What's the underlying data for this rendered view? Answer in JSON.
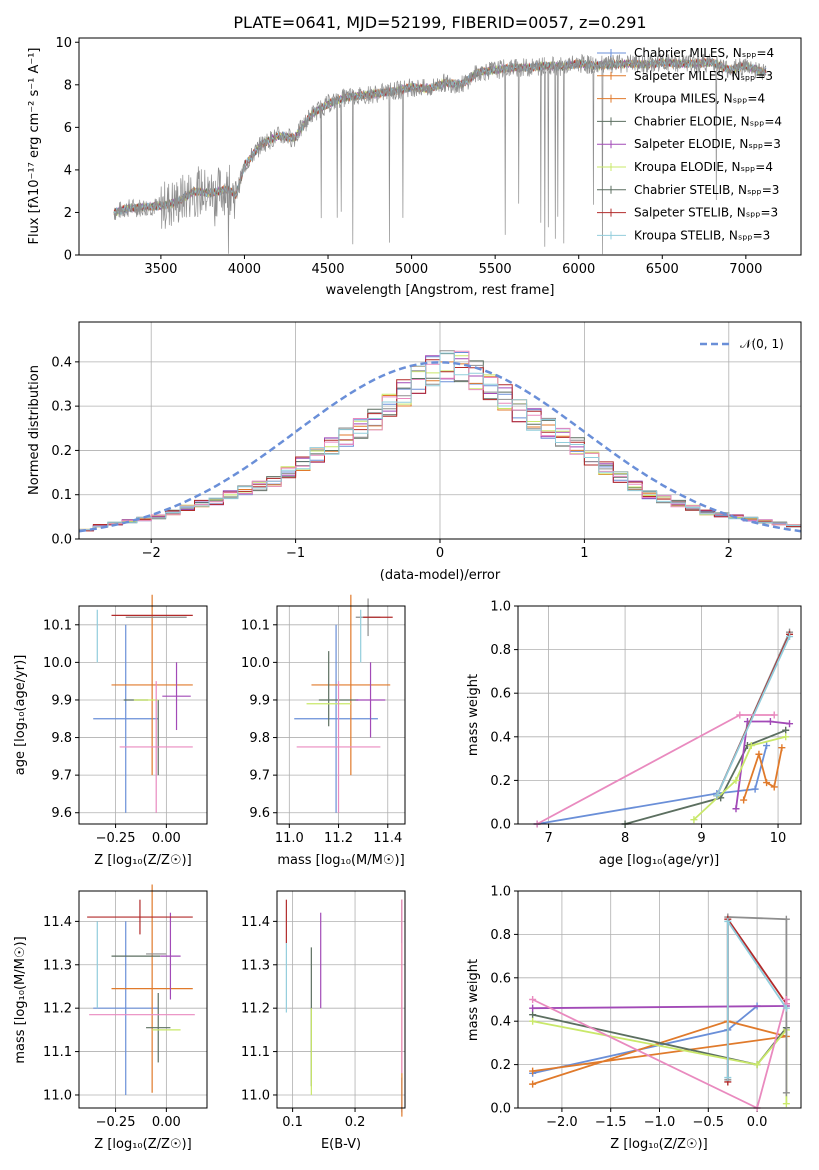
{
  "colors": [
    "#6a8fd8",
    "#e07a2b",
    "#5c6f60",
    "#a24ab7",
    "#c9e86a",
    "#8e8e8e",
    "#b22b2b",
    "#e98abf",
    "#92cddc"
  ],
  "spectrum_panel": {
    "title": "PLATE=0641, MJD=52199, FIBERID=0057, z=0.291",
    "xlabel": "wavelength [Angstrom, rest frame]",
    "ylabel": "Flux [fλ10⁻¹⁷ erg cm⁻² s⁻¹ A⁻¹]",
    "xticks": [
      "3500",
      "4000",
      "4500",
      "5000",
      "5500",
      "6000",
      "6500",
      "7000"
    ],
    "yticks": [
      "0",
      "2",
      "4",
      "6",
      "8",
      "10"
    ],
    "legend": [
      "Chabrier MILES, Nₛₚₚ=4",
      "Salpeter MILES, Nₛₚₚ=3",
      "Kroupa MILES, Nₛₚₚ=4",
      "Chabrier ELODIE, Nₛₚₚ=4",
      "Salpeter ELODIE, Nₛₚₚ=3",
      "Kroupa ELODIE, Nₛₚₚ=4",
      "Chabrier STELIB, Nₛₚₚ=3",
      "Salpeter STELIB, Nₛₚₚ=3",
      "Kroupa STELIB, Nₛₚₚ=3"
    ]
  },
  "residual_panel": {
    "xlabel": "(data-model)/error",
    "ylabel": "Normed distribution",
    "legend": "𝒩(0, 1)",
    "xticks": [
      "−2",
      "−1",
      "0",
      "1",
      "2"
    ],
    "yticks": [
      "0.0",
      "0.1",
      "0.2",
      "0.3",
      "0.4"
    ]
  },
  "age_z_panel": {
    "xlabel": "Z [log₁₀(Z/Z☉)]",
    "ylabel": "age  [log₁₀(age/yr)]",
    "xticks": [
      "−0.25",
      "0.00"
    ],
    "yticks": [
      "9.6",
      "9.7",
      "9.8",
      "9.9",
      "10.0",
      "10.1"
    ]
  },
  "age_mass_panel": {
    "xlabel": "mass [log₁₀(M/M☉)]",
    "xticks": [
      "11.0",
      "11.2",
      "11.4"
    ],
    "yticks": [
      "9.6",
      "9.7",
      "9.8",
      "9.9",
      "10.0",
      "10.1"
    ]
  },
  "weight_age_panel": {
    "xlabel": "age  [log₁₀(age/yr)]",
    "ylabel": "mass weight",
    "xticks": [
      "7",
      "8",
      "9",
      "10"
    ],
    "yticks": [
      "0.0",
      "0.2",
      "0.4",
      "0.6",
      "0.8",
      "1.0"
    ]
  },
  "mass_z_panel": {
    "xlabel": "Z [log₁₀(Z/Z☉)]",
    "ylabel": "mass [log₁₀(M/M☉)]",
    "xticks": [
      "−0.25",
      "0.00"
    ],
    "yticks": [
      "11.0",
      "11.1",
      "11.2",
      "11.3",
      "11.4"
    ]
  },
  "mass_ebv_panel": {
    "xlabel": "E(B-V)",
    "xticks": [
      "0.1",
      "0.2"
    ],
    "yticks": [
      "11.0",
      "11.1",
      "11.2",
      "11.3",
      "11.4"
    ]
  },
  "weight_z_panel": {
    "xlabel": "Z [log₁₀(Z/Z☉)]",
    "ylabel": "mass weight",
    "xticks": [
      "−2.0",
      "−1.5",
      "−1.0",
      "−0.5",
      "0.0"
    ],
    "yticks": [
      "0.0",
      "0.2",
      "0.4",
      "0.6",
      "0.8",
      "1.0"
    ]
  },
  "chart_data": [
    {
      "type": "line",
      "title": "PLATE=0641, MJD=52199, FIBERID=0057, z=0.291",
      "xlabel": "wavelength [Angstrom, rest frame]",
      "ylabel": "Flux [fλ10⁻¹⁷ erg cm⁻² s⁻¹ A⁻¹]",
      "xlim": [
        3010,
        7330
      ],
      "ylim": [
        0,
        10.2
      ],
      "legend_position": "top-right",
      "data_color": "#8e8e8e",
      "continuum": {
        "x": [
          3220,
          3300,
          3400,
          3500,
          3600,
          3700,
          3800,
          3900,
          3950,
          4000,
          4100,
          4200,
          4300,
          4400,
          4500,
          4600,
          4700,
          4800,
          4900,
          5000,
          5100,
          5200,
          5300,
          5400,
          5500,
          5600,
          5700,
          5800,
          5900,
          6000,
          6100,
          6200,
          6300,
          6400,
          6500,
          6600,
          6700,
          6800,
          6900,
          7000,
          7100
        ],
        "y": [
          2.0,
          2.2,
          2.25,
          2.3,
          2.5,
          3.0,
          2.9,
          3.1,
          2.8,
          4.2,
          5.2,
          5.6,
          5.5,
          6.6,
          7.1,
          7.4,
          7.5,
          7.6,
          7.7,
          7.9,
          7.8,
          8.1,
          8.0,
          8.6,
          8.7,
          8.8,
          8.8,
          8.9,
          8.85,
          9.0,
          8.9,
          8.95,
          9.0,
          8.95,
          9.05,
          9.0,
          9.0,
          9.05,
          8.7,
          8.9,
          8.6
        ]
      },
      "series": [
        {
          "name": "Chabrier MILES, Nₛₚₚ=4",
          "color": "#6a8fd8"
        },
        {
          "name": "Salpeter MILES, Nₛₚₚ=3",
          "color": "#e07a2b"
        },
        {
          "name": "Kroupa MILES, Nₛₚₚ=4",
          "color": "#e07a2b"
        },
        {
          "name": "Chabrier ELODIE, Nₛₚₚ=4",
          "color": "#5c6f60"
        },
        {
          "name": "Salpeter ELODIE, Nₛₚₚ=3",
          "color": "#a24ab7"
        },
        {
          "name": "Kroupa ELODIE, Nₛₚₚ=4",
          "color": "#c9e86a"
        },
        {
          "name": "Chabrier STELIB, Nₛₚₚ=3",
          "color": "#5c6f60"
        },
        {
          "name": "Salpeter STELIB, Nₛₚₚ=3",
          "color": "#b22b2b"
        },
        {
          "name": "Kroupa STELIB, Nₛₚₚ=3",
          "color": "#92cddc"
        }
      ]
    },
    {
      "type": "line",
      "xlabel": "(data-model)/error",
      "ylabel": "Normed distribution",
      "xlim": [
        -2.5,
        2.5
      ],
      "ylim": [
        0,
        0.49
      ],
      "grid": true,
      "histogram_bins": {
        "start": -2.5,
        "width": 0.1,
        "count": 50
      },
      "histogram_shape": [
        0.02,
        0.03,
        0.035,
        0.04,
        0.045,
        0.05,
        0.06,
        0.07,
        0.08,
        0.085,
        0.1,
        0.11,
        0.12,
        0.13,
        0.15,
        0.17,
        0.19,
        0.21,
        0.23,
        0.25,
        0.27,
        0.3,
        0.33,
        0.36,
        0.38,
        0.39,
        0.39,
        0.37,
        0.34,
        0.32,
        0.29,
        0.27,
        0.25,
        0.23,
        0.21,
        0.18,
        0.16,
        0.14,
        0.12,
        0.1,
        0.09,
        0.08,
        0.07,
        0.06,
        0.055,
        0.05,
        0.045,
        0.04,
        0.035,
        0.03
      ],
      "series": [
        {
          "name": "𝒩(0, 1)",
          "style": "dashed",
          "mean": 0,
          "sigma": 1,
          "color": "#6a8fd8"
        }
      ],
      "legend_position": "top-right"
    },
    {
      "type": "scatter",
      "xlabel": "Z [log₁₀(Z/Z☉)]",
      "ylabel": "age  [log₁₀(age/yr)]",
      "xlim": [
        -0.43,
        0.2
      ],
      "ylim": [
        9.57,
        10.15
      ],
      "errorbars": [
        {
          "x": -0.2,
          "y": 9.85,
          "xerr": 0.16,
          "yerr": 0.25,
          "color": "#6a8fd8"
        },
        {
          "x": -0.07,
          "y": 9.94,
          "xerr": 0.2,
          "yerr": 0.24,
          "color": "#e07a2b"
        },
        {
          "x": -0.15,
          "y": 9.9,
          "xerr": 0.06,
          "yerr": 0.0,
          "color": "#5c6f60"
        },
        {
          "x": -0.04,
          "y": 9.8,
          "xerr": 0.0,
          "yerr": 0.1,
          "color": "#5c6f60"
        },
        {
          "x": 0.05,
          "y": 9.91,
          "xerr": 0.07,
          "yerr": 0.09,
          "color": "#a24ab7"
        },
        {
          "x": -0.1,
          "y": 9.9,
          "xerr": 0.06,
          "yerr": 0.0,
          "color": "#c9e86a"
        },
        {
          "x": -0.05,
          "y": 10.12,
          "xerr": 0.15,
          "yerr": 0.0,
          "color": "#8e8e8e"
        },
        {
          "x": -0.07,
          "y": 10.125,
          "xerr": 0.2,
          "yerr": 0.0,
          "color": "#b22b2b"
        },
        {
          "x": -0.05,
          "y": 9.775,
          "xerr": 0.18,
          "yerr": 0.175,
          "color": "#e98abf"
        },
        {
          "x": -0.34,
          "y": 10.07,
          "xerr": 0.0,
          "yerr": 0.07,
          "color": "#92cddc"
        }
      ]
    },
    {
      "type": "scatter",
      "xlabel": "mass [log₁₀(M/M☉)]",
      "xlim": [
        10.95,
        11.47
      ],
      "ylim": [
        9.57,
        10.15
      ],
      "errorbars": [
        {
          "x": 11.19,
          "y": 9.85,
          "xerr": 0.17,
          "yerr": 0.25,
          "color": "#6a8fd8"
        },
        {
          "x": 11.25,
          "y": 9.94,
          "xerr": 0.16,
          "yerr": 0.24,
          "color": "#e07a2b"
        },
        {
          "x": 11.2,
          "y": 9.9,
          "xerr": 0.08,
          "yerr": 0.0,
          "color": "#5c6f60"
        },
        {
          "x": 11.16,
          "y": 9.93,
          "xerr": 0.0,
          "yerr": 0.1,
          "color": "#5c6f60"
        },
        {
          "x": 11.33,
          "y": 9.9,
          "xerr": 0.06,
          "yerr": 0.1,
          "color": "#a24ab7"
        },
        {
          "x": 11.16,
          "y": 9.89,
          "xerr": 0.09,
          "yerr": 0.0,
          "color": "#c9e86a"
        },
        {
          "x": 11.32,
          "y": 10.12,
          "xerr": 0.05,
          "yerr": 0.05,
          "color": "#8e8e8e"
        },
        {
          "x": 11.36,
          "y": 10.12,
          "xerr": 0.06,
          "yerr": 0.0,
          "color": "#b22b2b"
        },
        {
          "x": 11.2,
          "y": 9.775,
          "xerr": 0.17,
          "yerr": 0.175,
          "color": "#e98abf"
        },
        {
          "x": 11.29,
          "y": 10.07,
          "xerr": 0.0,
          "yerr": 0.07,
          "color": "#92cddc"
        }
      ]
    },
    {
      "type": "line",
      "xlabel": "age  [log₁₀(age/yr)]",
      "ylabel": "mass weight",
      "xlim": [
        6.6,
        10.3
      ],
      "ylim": [
        0,
        1.0
      ],
      "grid": true,
      "series": [
        {
          "color": "#6a8fd8",
          "x": [
            6.85,
            9.2,
            9.7,
            9.85
          ],
          "y": [
            0.0,
            0.14,
            0.16,
            0.36
          ]
        },
        {
          "color": "#e07a2b",
          "x": [
            9.55,
            9.75,
            9.85,
            9.95,
            10.05
          ],
          "y": [
            0.11,
            0.32,
            0.19,
            0.17,
            0.35
          ]
        },
        {
          "color": "#5c6f60",
          "x": [
            8.0,
            9.25,
            9.6,
            10.1
          ],
          "y": [
            0.0,
            0.12,
            0.36,
            0.43
          ]
        },
        {
          "color": "#a24ab7",
          "x": [
            9.45,
            9.6,
            9.9,
            10.15
          ],
          "y": [
            0.07,
            0.47,
            0.47,
            0.46
          ]
        },
        {
          "color": "#c9e86a",
          "x": [
            8.9,
            9.45,
            9.65,
            10.1
          ],
          "y": [
            0.02,
            0.2,
            0.36,
            0.4
          ]
        },
        {
          "color": "#8e8e8e",
          "x": [
            9.2,
            10.15
          ],
          "y": [
            0.13,
            0.88
          ]
        },
        {
          "color": "#b22b2b",
          "x": [
            9.2,
            10.15
          ],
          "y": [
            0.13,
            0.87
          ]
        },
        {
          "color": "#e98abf",
          "x": [
            6.85,
            9.5,
            9.95
          ],
          "y": [
            0.0,
            0.5,
            0.5
          ]
        },
        {
          "color": "#92cddc",
          "x": [
            9.2,
            10.15
          ],
          "y": [
            0.13,
            0.86
          ]
        }
      ]
    },
    {
      "type": "scatter",
      "xlabel": "Z [log₁₀(Z/Z☉)]",
      "ylabel": "mass [log₁₀(M/M☉)]",
      "xlim": [
        -0.43,
        0.2
      ],
      "ylim": [
        10.97,
        11.47
      ],
      "errorbars": [
        {
          "x": -0.2,
          "y": 11.2,
          "xerr": 0.16,
          "yerr": 0.2,
          "color": "#6a8fd8"
        },
        {
          "x": -0.07,
          "y": 11.245,
          "xerr": 0.2,
          "yerr": 0.24,
          "color": "#e07a2b"
        },
        {
          "x": -0.15,
          "y": 11.32,
          "xerr": 0.12,
          "yerr": 0.0,
          "color": "#5c6f60"
        },
        {
          "x": -0.04,
          "y": 11.155,
          "xerr": 0.06,
          "yerr": 0.08,
          "color": "#5c6f60"
        },
        {
          "x": 0.02,
          "y": 11.32,
          "xerr": 0.05,
          "yerr": 0.1,
          "color": "#a24ab7"
        },
        {
          "x": 0.0,
          "y": 11.15,
          "xerr": 0.07,
          "yerr": 0.0,
          "color": "#c9e86a"
        },
        {
          "x": -0.05,
          "y": 11.325,
          "xerr": 0.05,
          "yerr": 0.0,
          "color": "#8e8e8e"
        },
        {
          "x": -0.13,
          "y": 11.41,
          "xerr": 0.26,
          "yerr": 0.04,
          "color": "#b22b2b"
        },
        {
          "x": -0.12,
          "y": 11.185,
          "xerr": 0.26,
          "yerr": 0.0,
          "color": "#e98abf"
        },
        {
          "x": -0.34,
          "y": 11.3,
          "xerr": 0.0,
          "yerr": 0.1,
          "color": "#92cddc"
        }
      ]
    },
    {
      "type": "scatter",
      "xlabel": "E(B-V)",
      "xlim": [
        0.075,
        0.28
      ],
      "ylim": [
        10.97,
        11.47
      ],
      "errorbars": [
        {
          "x": 0.275,
          "y": 11.0,
          "xerr": 0.0,
          "yerr": 0.04,
          "color": "#6a8fd8"
        },
        {
          "x": 0.275,
          "y": 11.2,
          "xerr": 0.0,
          "yerr": 0.25,
          "color": "#e07a2b"
        },
        {
          "x": 0.13,
          "y": 11.18,
          "xerr": 0.0,
          "yerr": 0.16,
          "color": "#5c6f60"
        },
        {
          "x": 0.145,
          "y": 11.31,
          "xerr": 0.0,
          "yerr": 0.11,
          "color": "#a24ab7"
        },
        {
          "x": 0.13,
          "y": 11.1,
          "xerr": 0.0,
          "yerr": 0.1,
          "color": "#c9e86a"
        },
        {
          "x": 0.275,
          "y": 11.4,
          "xerr": 0.0,
          "yerr": 0.05,
          "color": "#8e8e8e"
        },
        {
          "x": 0.09,
          "y": 11.4,
          "xerr": 0.0,
          "yerr": 0.05,
          "color": "#b22b2b"
        },
        {
          "x": 0.275,
          "y": 11.25,
          "xerr": 0.0,
          "yerr": 0.2,
          "color": "#e98abf"
        },
        {
          "x": 0.09,
          "y": 11.27,
          "xerr": 0.0,
          "yerr": 0.08,
          "color": "#92cddc"
        }
      ]
    },
    {
      "type": "line",
      "xlabel": "Z [log₁₀(Z/Z☉)]",
      "ylabel": "mass weight",
      "xlim": [
        -2.45,
        0.45
      ],
      "ylim": [
        0,
        1.0
      ],
      "grid": true,
      "series": [
        {
          "color": "#6a8fd8",
          "x": [
            -2.3,
            -0.3,
            0.0
          ],
          "y": [
            0.16,
            0.36,
            0.47
          ]
        },
        {
          "color": "#e07a2b",
          "x": [
            -2.3,
            -0.3,
            0.3,
            -2.3
          ],
          "y": [
            0.11,
            0.4,
            0.33,
            0.17
          ]
        },
        {
          "color": "#5c6f60",
          "x": [
            -2.3,
            0.0,
            0.3
          ],
          "y": [
            0.43,
            0.2,
            0.37
          ]
        },
        {
          "color": "#a24ab7",
          "x": [
            -2.3,
            0.3
          ],
          "y": [
            0.46,
            0.47
          ]
        },
        {
          "color": "#c9e86a",
          "x": [
            -2.3,
            0.0,
            0.3,
            0.3
          ],
          "y": [
            0.4,
            0.2,
            0.36,
            0.02
          ]
        },
        {
          "color": "#8e8e8e",
          "x": [
            -0.3,
            -0.3,
            0.3,
            0.3
          ],
          "y": [
            0.13,
            0.88,
            0.87,
            0.07
          ]
        },
        {
          "color": "#b22b2b",
          "x": [
            -0.3,
            -0.3,
            0.3
          ],
          "y": [
            0.12,
            0.87,
            0.48
          ]
        },
        {
          "color": "#e98abf",
          "x": [
            -2.3,
            0.0,
            0.3,
            0.3
          ],
          "y": [
            0.5,
            0.0,
            0.5,
            0.48
          ]
        },
        {
          "color": "#92cddc",
          "x": [
            -0.3,
            -0.3,
            0.3
          ],
          "y": [
            0.14,
            0.86,
            0.46
          ]
        }
      ]
    }
  ]
}
